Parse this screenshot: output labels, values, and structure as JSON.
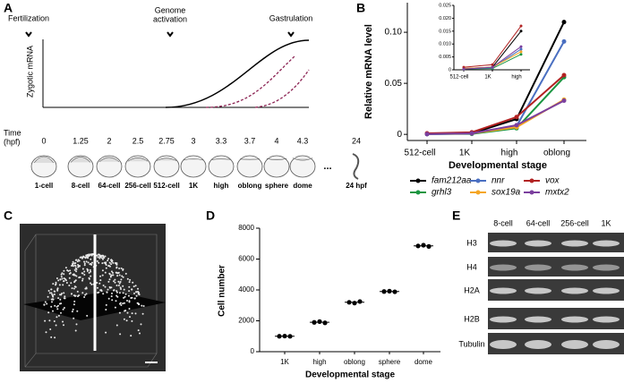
{
  "panels": [
    "A",
    "B",
    "C",
    "D",
    "E"
  ],
  "timeline": {
    "events": [
      [
        "Fertilization"
      ],
      [
        "Genome",
        "activation"
      ],
      [
        "Gastrulation"
      ]
    ],
    "y_label": "Zygotic mRNA",
    "time_label": [
      "Time",
      "(hpf)"
    ],
    "times": [
      0,
      1.25,
      2,
      2.5,
      2.75,
      3,
      3.3,
      3.7,
      4,
      4.3,
      24
    ],
    "stages": [
      "1-cell",
      "8-cell",
      "64-cell",
      "256-cell",
      "512-cell",
      "1K",
      "high",
      "oblong",
      "sphere",
      "dome",
      "24 hpf"
    ],
    "ellipsis": "..."
  },
  "chart_data": [
    {
      "type": "line",
      "x_label": "Developmental stage",
      "y_label": "Relative mRNA level",
      "categories": [
        "512-cell",
        "1K",
        "high",
        "oblong"
      ],
      "ylim": [
        -0.006,
        0.129
      ],
      "yticks": [
        0,
        0.05,
        {
          "value": 0.1,
          "label": "0.10"
        }
      ],
      "series": [
        {
          "name": "fam212aa",
          "color": "#000000",
          "values": [
            0.0005,
            0.001,
            0.015,
            0.11
          ]
        },
        {
          "name": "grhl3",
          "color": "#1a9641",
          "values": [
            0.0003,
            0.0005,
            0.006,
            0.056
          ]
        },
        {
          "name": "nnr",
          "color": "#4a6fc1",
          "values": [
            0.0003,
            0.0008,
            0.008,
            0.091
          ]
        },
        {
          "name": "sox19a",
          "color": "#f5a623",
          "values": [
            0.0005,
            0.001,
            0.007,
            0.034
          ]
        },
        {
          "name": "vox",
          "color": "#b22222",
          "values": [
            0.001,
            0.002,
            0.017,
            0.058
          ]
        },
        {
          "name": "mxtx2",
          "color": "#7b3f9e",
          "values": [
            0.0003,
            0.001,
            0.009,
            0.033
          ]
        }
      ],
      "inset": {
        "categories": [
          "512-cell",
          "1K",
          "high"
        ],
        "ylim": [
          0,
          0.025
        ],
        "yticks": [
          0,
          0.005,
          {
            "value": 0.01,
            "label": "0.010"
          },
          {
            "value": 0.015,
            "label": "0.015"
          },
          {
            "value": 0.02,
            "label": "0.020"
          },
          {
            "value": 0.025,
            "label": "0.025"
          }
        ]
      }
    },
    {
      "type": "dot",
      "x_label": "Developmental stage",
      "y_label": "Cell number",
      "color": "#000000",
      "categories": [
        "1K",
        "high",
        "oblong",
        "sphere",
        "dome"
      ],
      "values": [
        [
          1000,
          1010,
          995
        ],
        [
          1900,
          1950,
          1870
        ],
        [
          3200,
          3150,
          3250
        ],
        [
          3900,
          3920,
          3880
        ],
        [
          6850,
          6900,
          6820
        ]
      ],
      "ylim": [
        0,
        8000
      ],
      "yticks": [
        0,
        2000,
        4000,
        6000,
        8000
      ]
    }
  ],
  "blot": {
    "columns": [
      "8-cell",
      "64-cell",
      "256-cell",
      "1K"
    ],
    "rows": [
      "H3",
      "H4",
      "H2A",
      "H2B",
      "Tubulin"
    ]
  }
}
